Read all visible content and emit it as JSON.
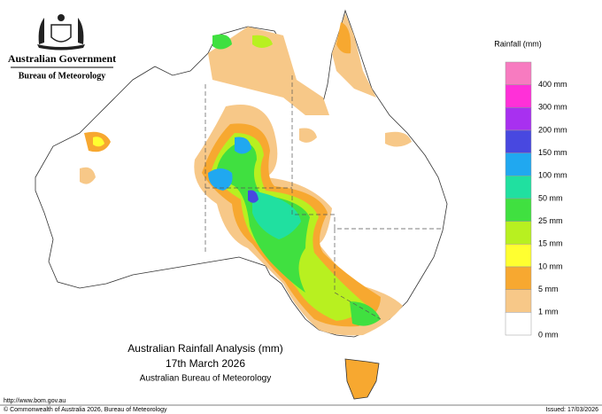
{
  "header": {
    "government": "Australian Government",
    "bureau": "Bureau of Meteorology"
  },
  "legend": {
    "title": "Rainfall (mm)",
    "colors": [
      "#f77bc0",
      "#ff30d8",
      "#a830f0",
      "#4848e0",
      "#20a8f0",
      "#20e0a0",
      "#40e040",
      "#b8f020",
      "#ffff30",
      "#f7a830",
      "#f7c888",
      "#ffffff"
    ],
    "labels": [
      "400 mm",
      "300 mm",
      "200 mm",
      "150 mm",
      "100 mm",
      "50 mm",
      "25 mm",
      "15 mm",
      "10 mm",
      "5 mm",
      "1 mm",
      "0 mm"
    ]
  },
  "title": {
    "line1": "Australian Rainfall Analysis (mm)",
    "line2": "17th March 2026",
    "line3": "Australian Bureau of Meteorology"
  },
  "footer": {
    "url": "http://www.bom.gov.au",
    "copyright": "© Commonwealth of Australia 2026, Bureau of Meteorology",
    "issued": "Issued: 17/03/2026"
  }
}
